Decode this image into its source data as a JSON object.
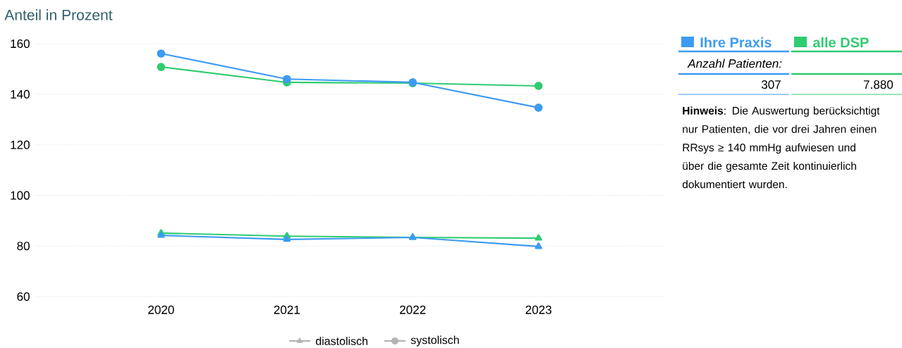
{
  "chart_data": {
    "type": "line",
    "title": "Anteil in Prozent",
    "categories": [
      "2020",
      "2021",
      "2022",
      "2023"
    ],
    "series": [
      {
        "name": "Ihre Praxis",
        "color": "#3d9bf3",
        "marker": "circle",
        "values": [
          156.1,
          146,
          144.7,
          134.7
        ]
      },
      {
        "name": "alle DSP",
        "color": "#2fcc71",
        "marker": "circle",
        "values": [
          150.8,
          144.7,
          144.4,
          143.3
        ]
      },
      {
        "color": "#3d9bf3",
        "marker": "triangle",
        "values": [
          84.2,
          82.6,
          83.4,
          79.8
        ]
      },
      {
        "color": "#2fcc71",
        "marker": "triangle",
        "values": [
          85.1,
          83.9,
          83.4,
          83.1
        ]
      }
    ],
    "ylim": [
      60,
      160
    ],
    "yticks": [
      60,
      80,
      100,
      120,
      140,
      160
    ],
    "grid": "y",
    "legend": "right",
    "annotations": [
      "Anzahl Patienten:",
      "307",
      "7.880",
      "**Hinweis**: Die Auswertung berücksichtigt nur Patienten, die vor drei Jahren einen RRsys ≥ 140 mmHg aufwiesen und über die gesamte Zeit kontinuierlich dokumentiert wurden.",
      "diastolisch",
      "systolisch"
    ]
  }
}
